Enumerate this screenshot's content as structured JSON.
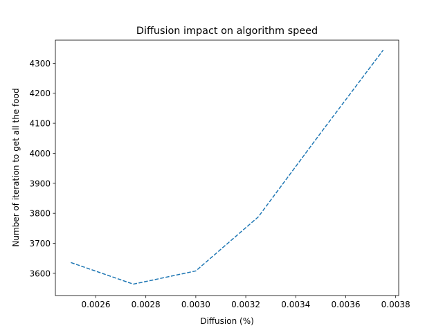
{
  "chart_data": {
    "type": "line",
    "title": "Diffusion impact on algorithm speed",
    "xlabel": "Diffusion (%)",
    "ylabel": "Number of iteration to get all the food",
    "xlim": [
      0.002438,
      0.003812
    ],
    "ylim": [
      3526,
      4377
    ],
    "x_ticks": [
      0.0026,
      0.0028,
      0.003,
      0.0032,
      0.0034,
      0.0036,
      0.0038
    ],
    "x_tick_labels": [
      "0.0026",
      "0.0028",
      "0.0030",
      "0.0032",
      "0.0034",
      "0.0036",
      "0.0038"
    ],
    "y_ticks": [
      3600,
      3700,
      3800,
      3900,
      4000,
      4100,
      4200,
      4300
    ],
    "y_tick_labels": [
      "3600",
      "3700",
      "3800",
      "3900",
      "4000",
      "4100",
      "4200",
      "4300"
    ],
    "grid": false,
    "series": [
      {
        "color": "#1f77b4",
        "line_style": "dashed",
        "x": [
          0.0025,
          0.00275,
          0.003,
          0.00325,
          0.0035,
          0.00375
        ],
        "values": [
          3636,
          3564,
          3608,
          3788,
          4068,
          4344
        ]
      }
    ]
  }
}
